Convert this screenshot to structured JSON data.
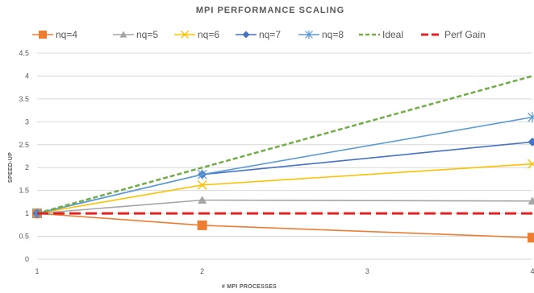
{
  "chart_data": {
    "type": "line",
    "title": "MPI PERFORMANCE SCALING",
    "xlabel": "# MPI PROCESSES",
    "ylabel": "SPEED-UP",
    "x": [
      1,
      2,
      3,
      4
    ],
    "xlim": [
      1,
      4
    ],
    "ylim": [
      0,
      4.5
    ],
    "yticks": [
      "0",
      "0.5",
      "1",
      "1.5",
      "2",
      "2.5",
      "3",
      "3.5",
      "4",
      "4.5"
    ],
    "xticks": [
      "1",
      "2",
      "3",
      "4"
    ],
    "grid": true,
    "legend_position": "top",
    "series": [
      {
        "name": "nq=4",
        "color": "#ED7D31",
        "marker": "square",
        "dash": "solid",
        "points": [
          [
            1,
            1.0
          ],
          [
            2,
            0.74
          ],
          [
            4,
            0.47
          ]
        ]
      },
      {
        "name": "nq=5",
        "color": "#A5A5A5",
        "marker": "triangle",
        "dash": "solid",
        "points": [
          [
            1,
            1.0
          ],
          [
            2,
            1.29
          ],
          [
            4,
            1.27
          ]
        ]
      },
      {
        "name": "nq=6",
        "color": "#FFC000",
        "marker": "x",
        "dash": "solid",
        "points": [
          [
            1,
            1.0
          ],
          [
            2,
            1.62
          ],
          [
            4,
            2.08
          ]
        ]
      },
      {
        "name": "nq=7",
        "color": "#4472C4",
        "marker": "diamond",
        "dash": "solid",
        "points": [
          [
            1,
            1.0
          ],
          [
            2,
            1.85
          ],
          [
            4,
            2.56
          ]
        ]
      },
      {
        "name": "nq=8",
        "color": "#5B9BD5",
        "marker": "asterisk",
        "dash": "solid",
        "points": [
          [
            1,
            1.0
          ],
          [
            2,
            1.85
          ],
          [
            4,
            3.1
          ]
        ]
      },
      {
        "name": "Ideal",
        "color": "#70AD47",
        "marker": "none",
        "dash": "dashed",
        "points": [
          [
            1,
            1.0
          ],
          [
            2,
            2.0
          ],
          [
            3,
            3.0
          ],
          [
            4,
            4.0
          ]
        ]
      },
      {
        "name": "Perf Gain",
        "color": "#E32323",
        "marker": "none",
        "dash": "longdash",
        "points": [
          [
            1,
            1.0
          ],
          [
            2,
            1.0
          ],
          [
            3,
            1.0
          ],
          [
            4,
            1.0
          ]
        ]
      }
    ]
  }
}
